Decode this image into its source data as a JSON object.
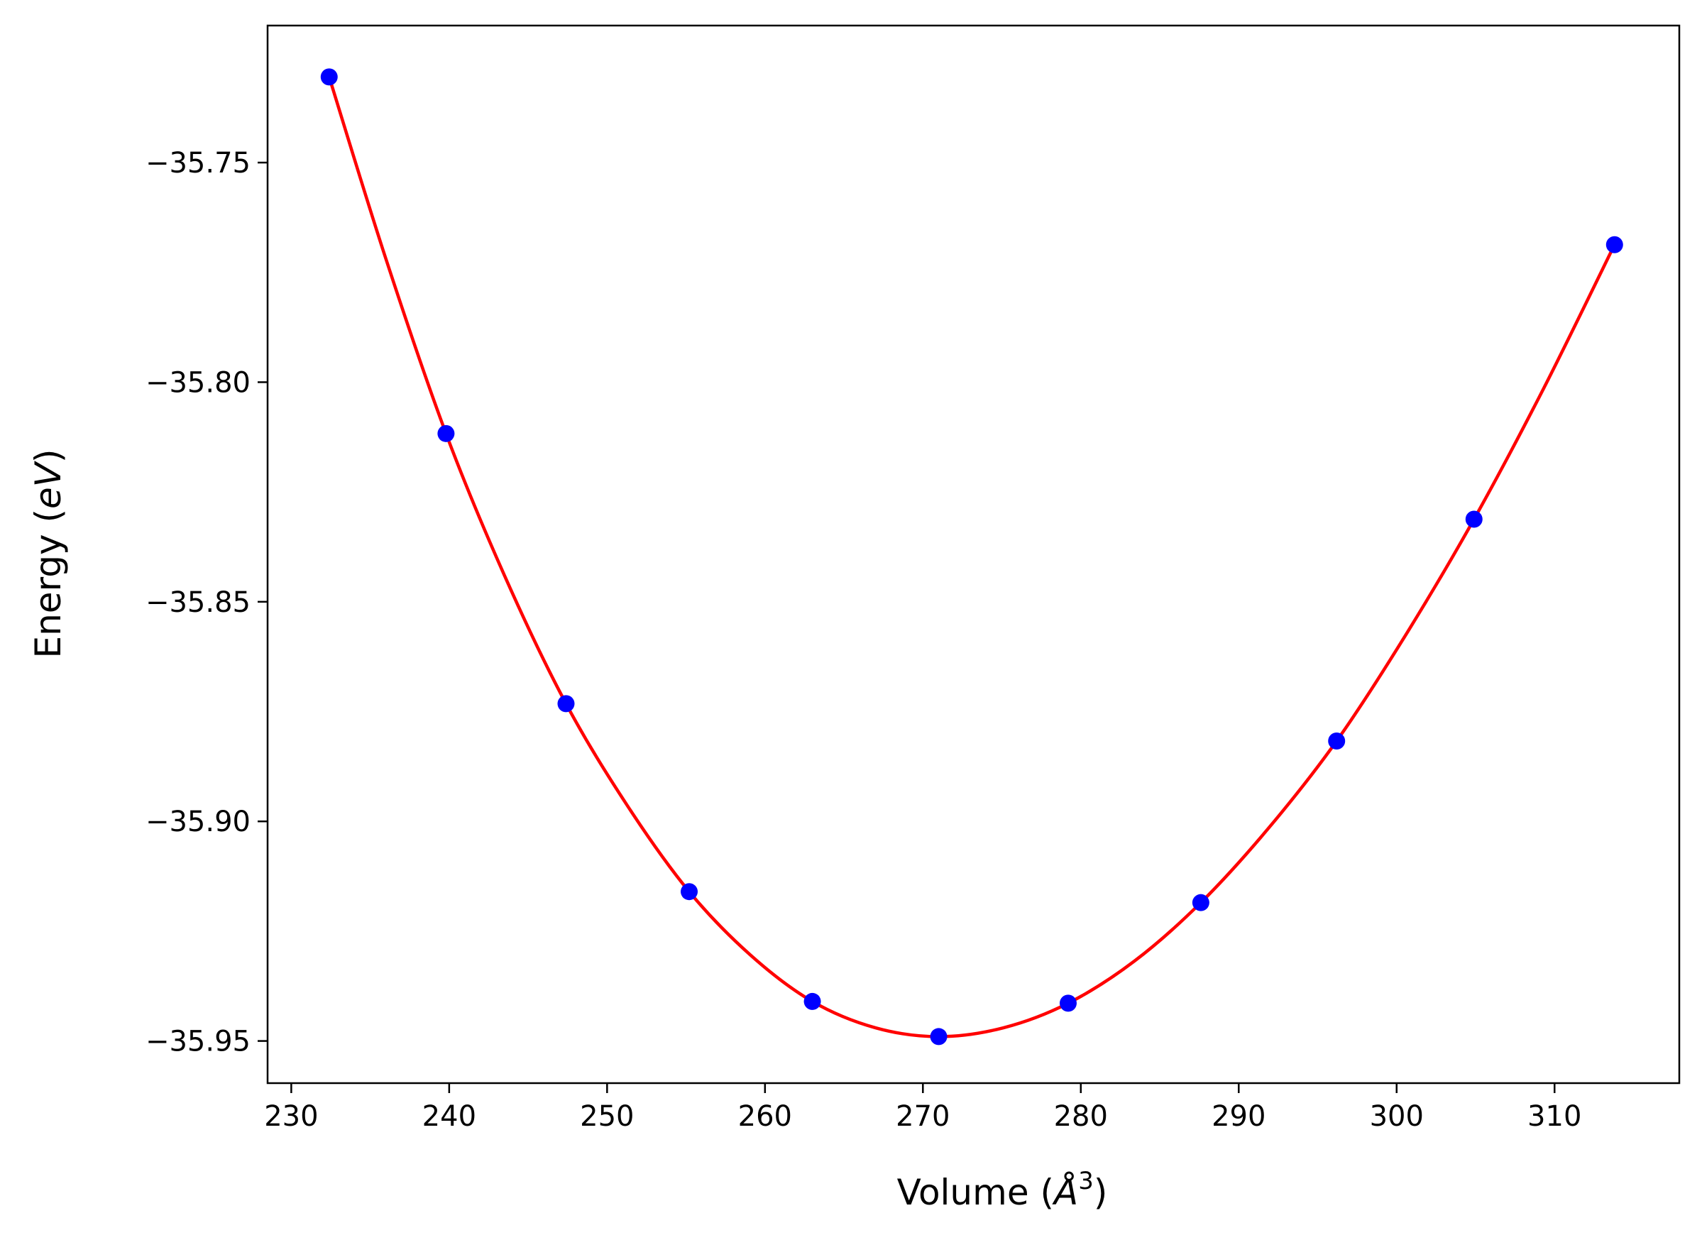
{
  "chart_data": {
    "type": "scatter",
    "title": "",
    "xlabel": "Volume (",
    "xlabel_symbol": "Å",
    "xlabel_exp": "3",
    "xlabel_close": ")",
    "ylabel": "Energy (",
    "ylabel_unit": "eV",
    "ylabel_close": ")",
    "xlim": [
      228.5,
      317.9
    ],
    "ylim": [
      -35.9596,
      -35.7188
    ],
    "x_ticks": [
      230,
      240,
      250,
      260,
      270,
      280,
      290,
      300,
      310
    ],
    "x_tick_labels": [
      "230",
      "240",
      "250",
      "260",
      "270",
      "280",
      "290",
      "300",
      "310"
    ],
    "y_ticks": [
      -35.75,
      -35.8,
      -35.85,
      -35.9,
      -35.95
    ],
    "y_tick_labels": [
      "−35.75",
      "−35.80",
      "−35.85",
      "−35.90",
      "−35.95"
    ],
    "grid": false,
    "series": [
      {
        "kind": "points",
        "color": "#0000ff",
        "x": [
          232.4,
          239.8,
          247.4,
          255.2,
          263.0,
          271.0,
          279.2,
          287.6,
          296.2,
          304.9,
          313.8
        ],
        "y": [
          -35.7305,
          -35.8117,
          -35.8732,
          -35.916,
          -35.941,
          -35.949,
          -35.9414,
          -35.9185,
          -35.8817,
          -35.8312,
          -35.7687
        ]
      },
      {
        "kind": "fit-curve",
        "color": "#ff0000",
        "x": [
          232.4,
          236.0,
          239.8,
          243.5,
          247.4,
          251.3,
          255.2,
          259.1,
          263.0,
          267.0,
          271.0,
          275.1,
          279.2,
          283.4,
          287.6,
          291.9,
          296.2,
          300.5,
          304.9,
          309.3,
          313.8
        ],
        "y": [
          -35.7305,
          -35.772,
          -35.8117,
          -35.844,
          -35.8732,
          -35.8965,
          -35.916,
          -35.9305,
          -35.941,
          -35.947,
          -35.949,
          -35.947,
          -35.9414,
          -35.9318,
          -35.9185,
          -35.9015,
          -35.8817,
          -35.858,
          -35.8312,
          -35.8015,
          -35.7687
        ]
      }
    ]
  }
}
